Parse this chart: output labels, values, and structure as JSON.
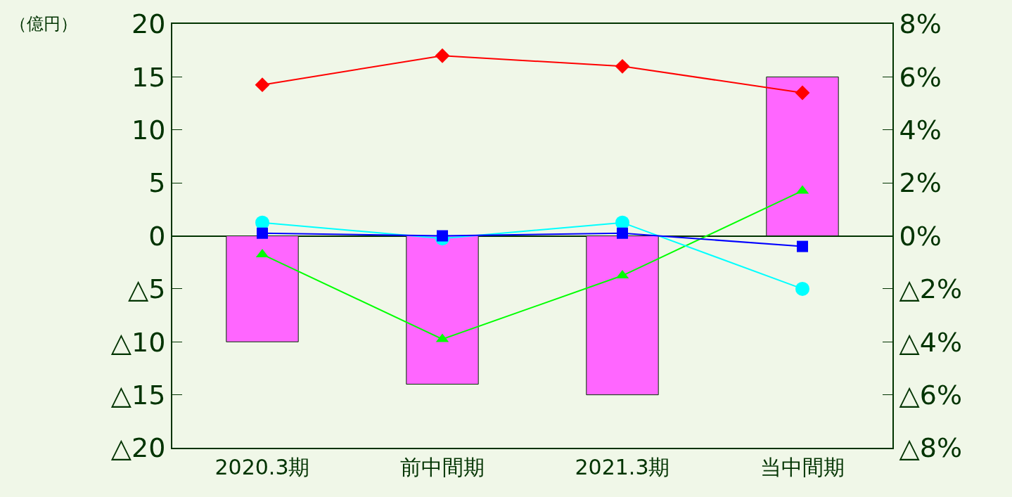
{
  "chart_data": {
    "type": "bar",
    "categories": [
      "2020.3期",
      "前中間期",
      "2021.3期",
      "当中間期"
    ],
    "annotations": [
      "（億円）"
    ],
    "series": [
      {
        "color": "#ff66ff",
        "values": [
          -10,
          -14,
          -15,
          15
        ]
      },
      {
        "type": "line",
        "axis": "y2",
        "color": "#ff0000",
        "marker": "diamond",
        "values": [
          5.7,
          6.8,
          6.4,
          5.4
        ]
      },
      {
        "type": "line",
        "axis": "y2",
        "color": "#00ff00",
        "marker": "triangle",
        "values": [
          -0.7,
          -3.9,
          -1.5,
          1.7
        ]
      },
      {
        "type": "line",
        "axis": "y2",
        "color": "#00ffff",
        "marker": "circle",
        "values": [
          0.5,
          -0.1,
          0.5,
          -2.0
        ]
      },
      {
        "type": "line",
        "axis": "y2",
        "color": "#0000ff",
        "marker": "square",
        "values": [
          0.1,
          0,
          0.1,
          -0.4
        ]
      }
    ],
    "ylim": [
      -20,
      20
    ],
    "yticks": [
      {
        "value": -20,
        "label": "△20"
      },
      {
        "value": -15,
        "label": "△15"
      },
      {
        "value": -10,
        "label": "△10"
      },
      {
        "value": -5,
        "label": "△5"
      },
      0,
      5,
      10,
      15,
      20
    ],
    "y2lim": [
      -8,
      8
    ],
    "y2ticks": [
      {
        "value": -8,
        "label": "△8%"
      },
      {
        "value": -6,
        "label": "△6%"
      },
      {
        "value": -4,
        "label": "△4%"
      },
      {
        "value": -2,
        "label": "△2%"
      },
      {
        "value": 0,
        "label": "0%"
      },
      {
        "value": 2,
        "label": "2%"
      },
      {
        "value": 4,
        "label": "4%"
      },
      {
        "value": 6,
        "label": "6%"
      },
      {
        "value": 8,
        "label": "8%"
      }
    ],
    "grid": false,
    "legend": false
  }
}
